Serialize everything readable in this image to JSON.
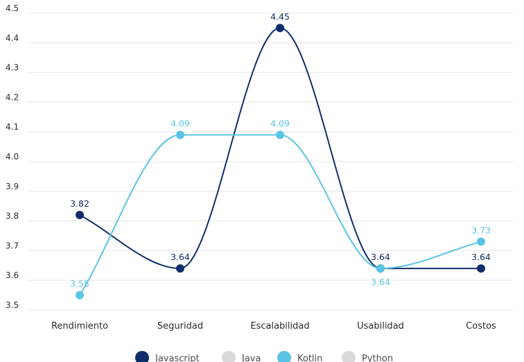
{
  "chart_data": {
    "type": "line",
    "title": "",
    "xlabel": "",
    "ylabel": "",
    "categories": [
      "Rendimiento",
      "Seguridad",
      "Escalabilidad",
      "Usabilidad",
      "Costos"
    ],
    "ylim": [
      3.5,
      4.5
    ],
    "yticks": [
      "3.5",
      "3.6",
      "3.7",
      "3.8",
      "3.9",
      "4.0",
      "4.1",
      "4.2",
      "4.3",
      "4.4",
      "4.5"
    ],
    "grid": true,
    "legend_position": "bottom",
    "legend": [
      {
        "name": "Javascript",
        "color": "#0f2d6b",
        "active": true
      },
      {
        "name": "Java",
        "color": "#d9d9d9",
        "active": false
      },
      {
        "name": "Kotlin",
        "color": "#5bc4e6",
        "active": true
      },
      {
        "name": "Python",
        "color": "#d9d9d9",
        "active": false
      }
    ],
    "series": [
      {
        "name": "Javascript",
        "color": "#0f2d6b",
        "values": [
          3.82,
          3.64,
          4.45,
          3.64,
          3.64
        ],
        "labels": [
          "3.82",
          "3.64",
          "4.45",
          "3.64",
          "3.64"
        ]
      },
      {
        "name": "Kotlin",
        "color": "#5bc4e6",
        "values": [
          3.55,
          4.09,
          4.09,
          3.64,
          3.73
        ],
        "labels": [
          "3.55",
          "4.09",
          "4.09",
          "3.64",
          "3.73"
        ]
      }
    ]
  }
}
